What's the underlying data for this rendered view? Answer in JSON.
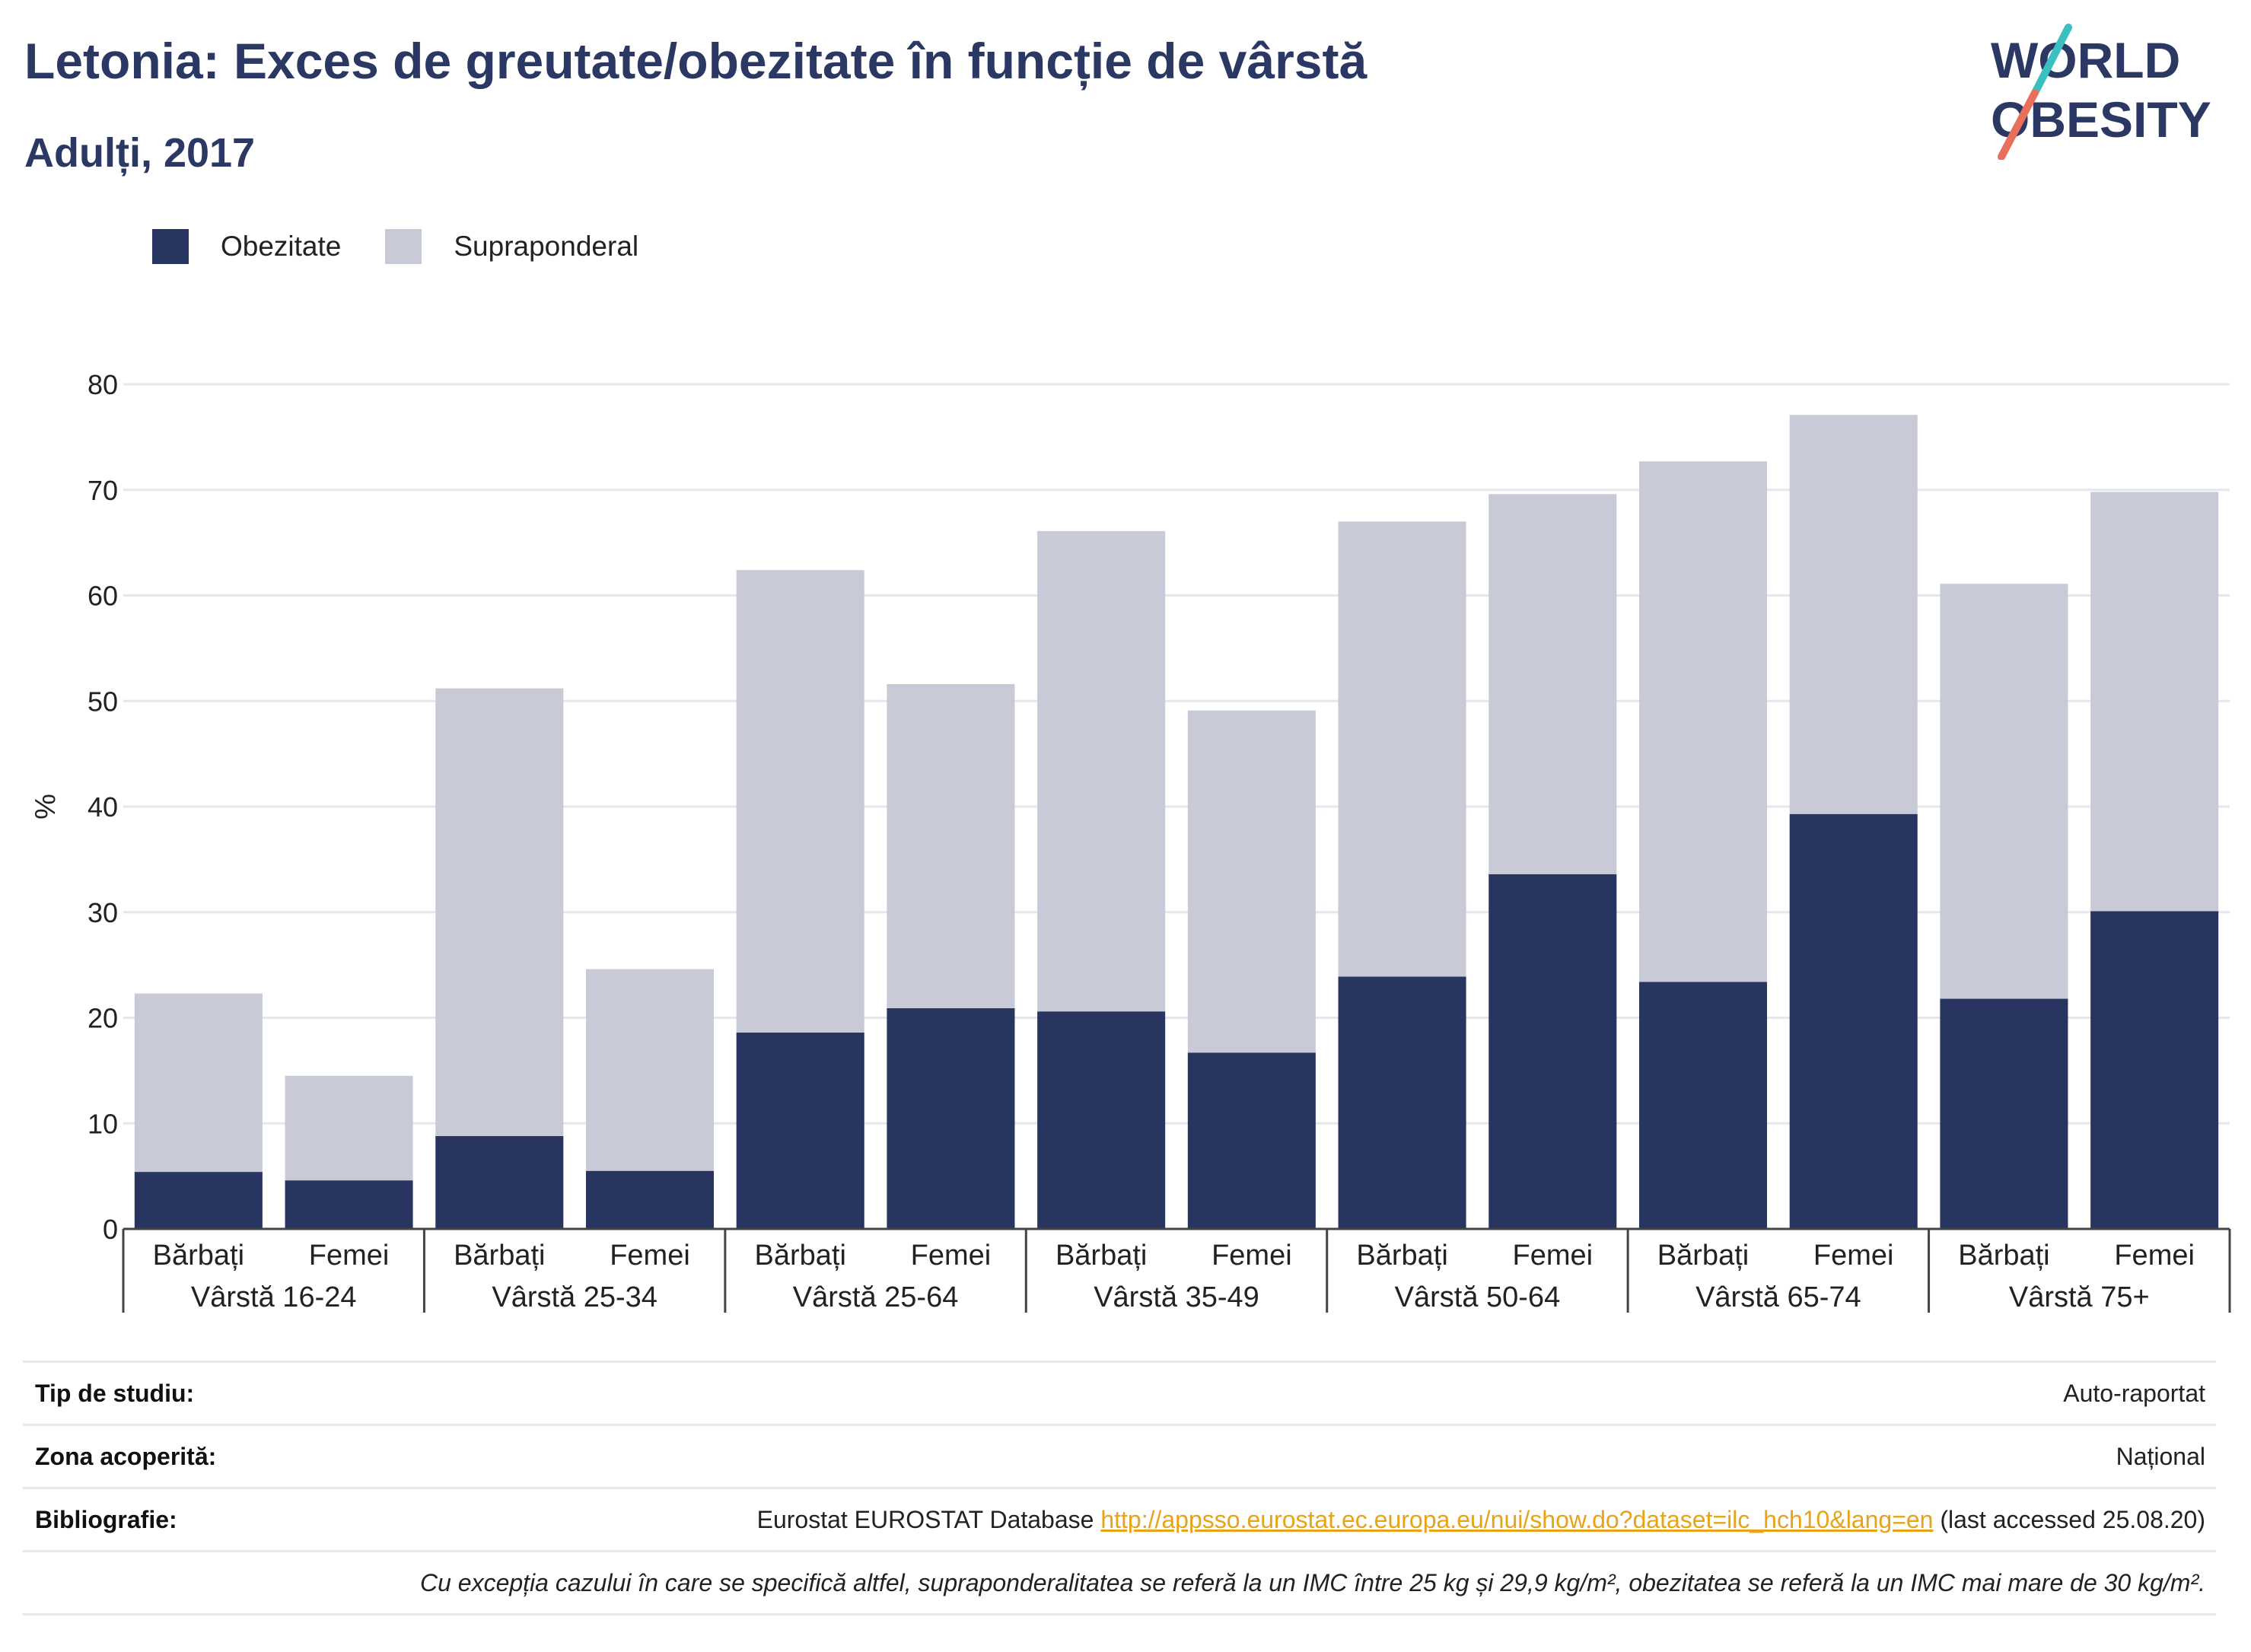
{
  "title": "Letonia: Exces de greutate/obezitate în funcție de vârstă",
  "subtitle": "Adulți, 2017",
  "logo": {
    "line1": "WORLD",
    "line2": "OBESITY"
  },
  "colors": {
    "obese": "#283561",
    "overweight": "#c9cad7",
    "title": "#2a3863",
    "link": "#e8a317"
  },
  "chart_data": {
    "type": "bar",
    "stacked": true,
    "ylabel": "%",
    "ylim": [
      0,
      80
    ],
    "yticks": [
      0,
      10,
      20,
      30,
      40,
      50,
      60,
      70,
      80
    ],
    "grid": true,
    "legend_position": "top-left",
    "groups": [
      "Vârstă 16-24",
      "Vârstă 25-34",
      "Vârstă 25-64",
      "Vârstă 35-49",
      "Vârstă 50-64",
      "Vârstă 65-74",
      "Vârstă 75+"
    ],
    "subcategories": [
      "Bărbați",
      "Femei"
    ],
    "series": [
      {
        "name": "Obezitate",
        "values": [
          5.4,
          4.6,
          8.8,
          5.5,
          18.6,
          20.9,
          20.6,
          16.7,
          23.9,
          33.6,
          23.4,
          39.3,
          21.8,
          30.1
        ]
      },
      {
        "name": "Supraponderal",
        "values": [
          16.9,
          9.9,
          42.4,
          19.1,
          43.8,
          30.7,
          45.5,
          32.4,
          43.1,
          36.0,
          49.3,
          37.8,
          39.3,
          39.7
        ]
      }
    ]
  },
  "meta": {
    "study_type": {
      "label": "Tip de studiu:",
      "value": "Auto-raportat"
    },
    "coverage": {
      "label": "Zona acoperită:",
      "value": "Național"
    },
    "bibliography": {
      "label": "Bibliografie:",
      "prefix": "Eurostat EUROSTAT Database",
      "link": "http://appsso.eurostat.ec.europa.eu/nui/show.do?dataset=ilc_hch10&lang=en",
      "suffix": "(last accessed 25.08.20)"
    },
    "note": "Cu excepția cazului în care se specifică altfel, supraponderalitatea se referă la un IMC între 25 kg și 29,9 kg/m², obezitatea se referă la un IMC mai mare de 30 kg/m²."
  }
}
